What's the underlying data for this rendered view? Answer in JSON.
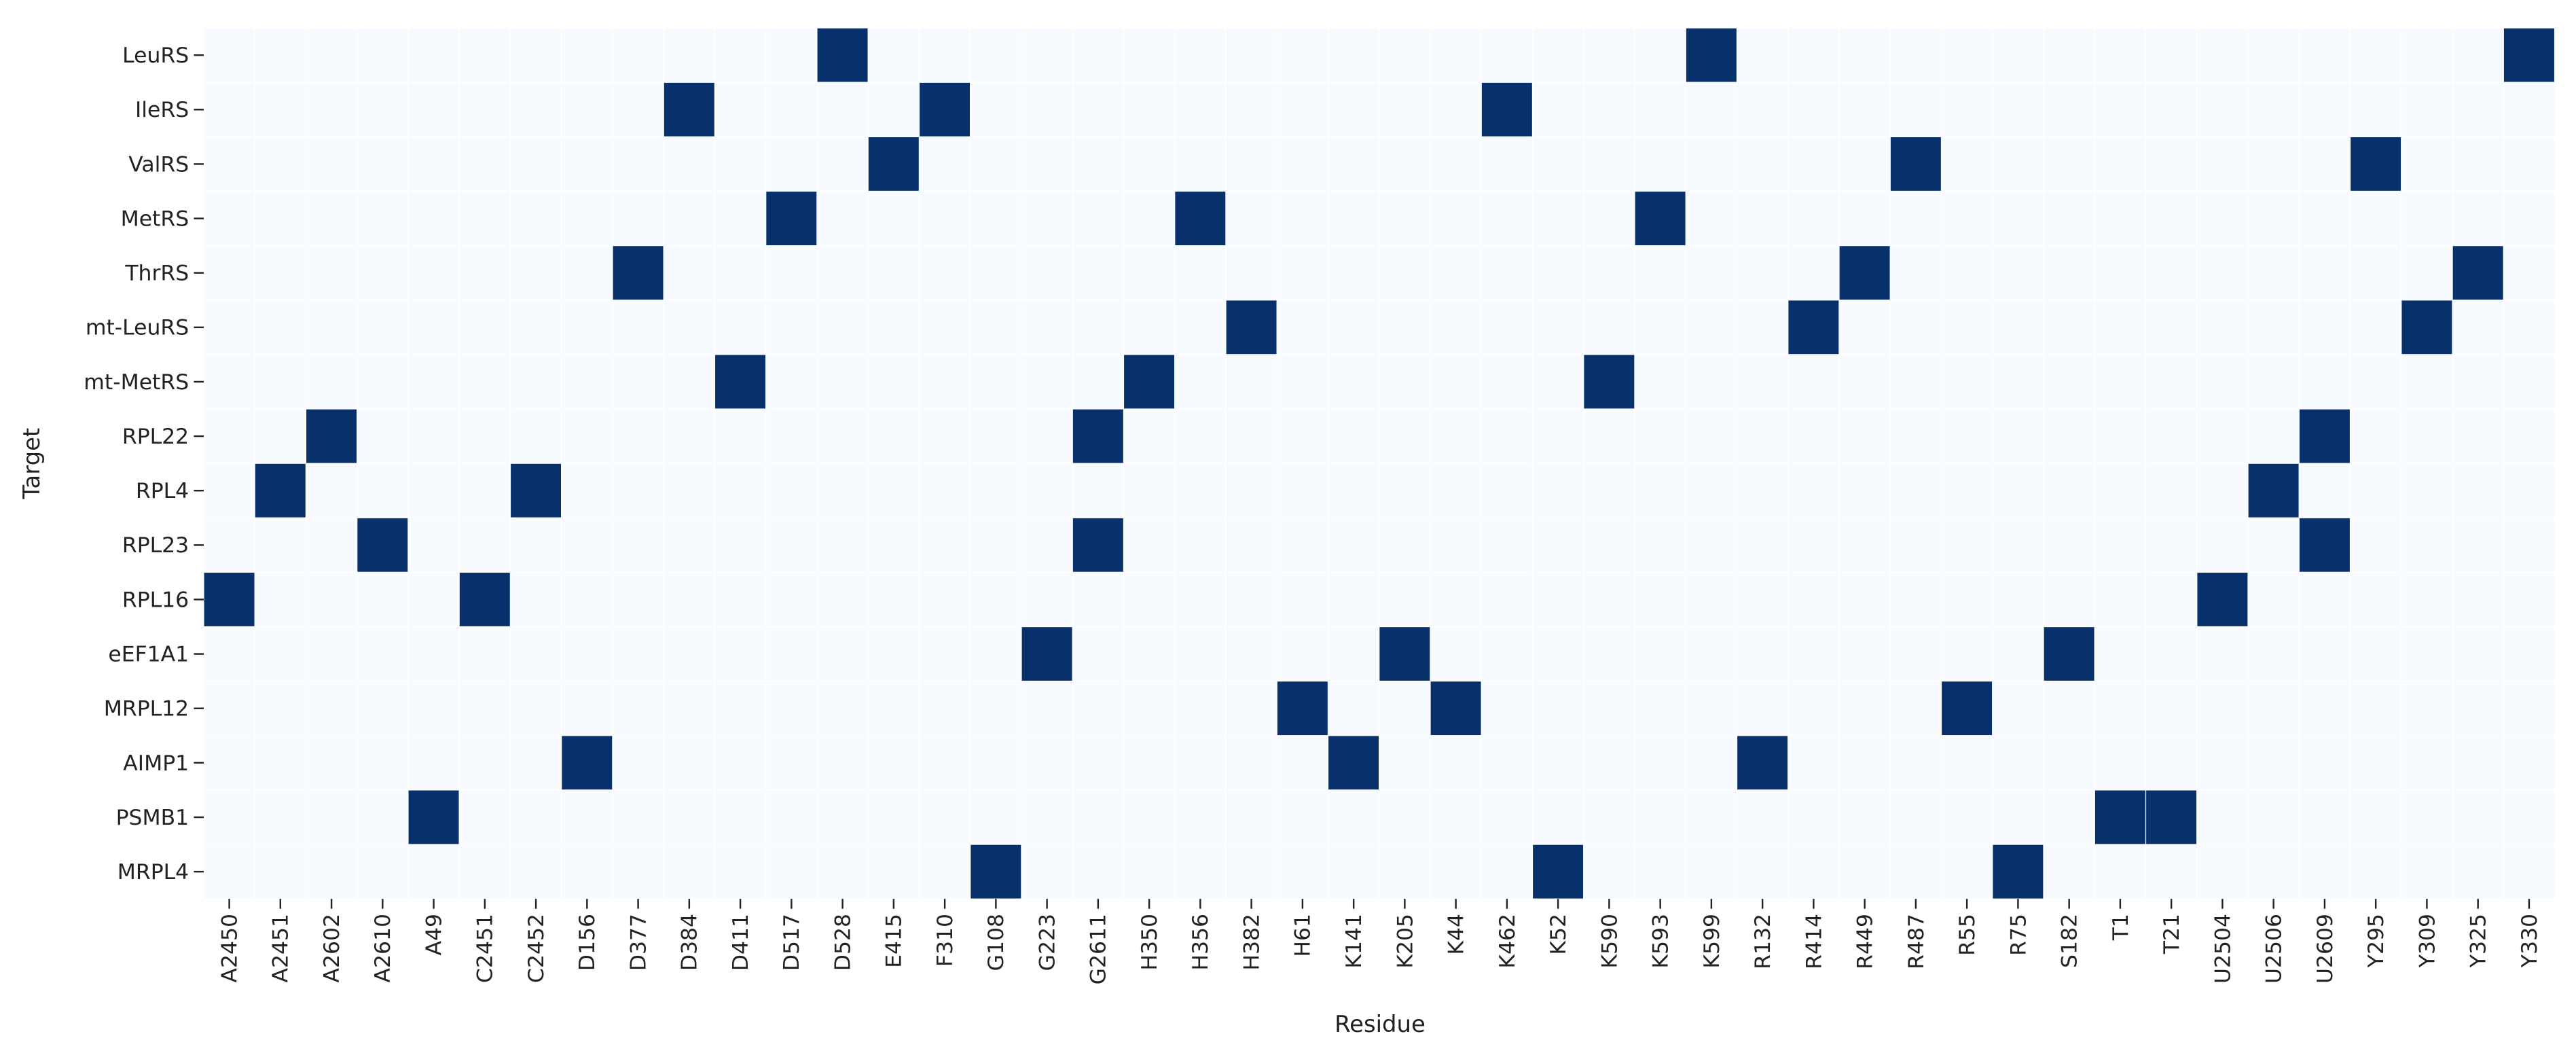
{
  "chart_data": {
    "type": "heatmap",
    "xlabel": "Residue",
    "ylabel": "Target",
    "x_categories": [
      "A2450",
      "A2451",
      "A2602",
      "A2610",
      "A49",
      "C2451",
      "C2452",
      "D156",
      "D377",
      "D384",
      "D411",
      "D517",
      "D528",
      "E415",
      "F310",
      "G108",
      "G223",
      "G2611",
      "H350",
      "H356",
      "H382",
      "H61",
      "K141",
      "K205",
      "K44",
      "K462",
      "K52",
      "K590",
      "K593",
      "K599",
      "R132",
      "R414",
      "R449",
      "R487",
      "R55",
      "R75",
      "S182",
      "T1",
      "T21",
      "U2504",
      "U2506",
      "U2609",
      "Y295",
      "Y309",
      "Y325",
      "Y330"
    ],
    "y_categories": [
      "LeuRS",
      "IleRS",
      "ValRS",
      "MetRS",
      "ThrRS",
      "mt-LeuRS",
      "mt-MetRS",
      "RPL22",
      "RPL4",
      "RPL23",
      "RPL16",
      "eEF1A1",
      "MRPL12",
      "AIMP1",
      "PSMB1",
      "MRPL4"
    ],
    "colormap": [
      "#f7fbff",
      "#08306b"
    ],
    "values": [
      [
        0,
        0,
        0,
        0,
        0,
        0,
        0,
        0,
        0,
        0,
        0,
        0,
        1,
        0,
        0,
        0,
        0,
        0,
        0,
        0,
        0,
        0,
        0,
        0,
        0,
        0,
        0,
        0,
        0,
        1,
        0,
        0,
        0,
        0,
        0,
        0,
        0,
        0,
        0,
        0,
        0,
        0,
        0,
        0,
        0,
        1
      ],
      [
        0,
        0,
        0,
        0,
        0,
        0,
        0,
        0,
        0,
        1,
        0,
        0,
        0,
        0,
        1,
        0,
        0,
        0,
        0,
        0,
        0,
        0,
        0,
        0,
        0,
        1,
        0,
        0,
        0,
        0,
        0,
        0,
        0,
        0,
        0,
        0,
        0,
        0,
        0,
        0,
        0,
        0,
        0,
        0,
        0,
        0
      ],
      [
        0,
        0,
        0,
        0,
        0,
        0,
        0,
        0,
        0,
        0,
        0,
        0,
        0,
        1,
        0,
        0,
        0,
        0,
        0,
        0,
        0,
        0,
        0,
        0,
        0,
        0,
        0,
        0,
        0,
        0,
        0,
        0,
        0,
        1,
        0,
        0,
        0,
        0,
        0,
        0,
        0,
        0,
        1,
        0,
        0,
        0
      ],
      [
        0,
        0,
        0,
        0,
        0,
        0,
        0,
        0,
        0,
        0,
        0,
        1,
        0,
        0,
        0,
        0,
        0,
        0,
        0,
        1,
        0,
        0,
        0,
        0,
        0,
        0,
        0,
        0,
        1,
        0,
        0,
        0,
        0,
        0,
        0,
        0,
        0,
        0,
        0,
        0,
        0,
        0,
        0,
        0,
        0,
        0
      ],
      [
        0,
        0,
        0,
        0,
        0,
        0,
        0,
        0,
        1,
        0,
        0,
        0,
        0,
        0,
        0,
        0,
        0,
        0,
        0,
        0,
        0,
        0,
        0,
        0,
        0,
        0,
        0,
        0,
        0,
        0,
        0,
        0,
        1,
        0,
        0,
        0,
        0,
        0,
        0,
        0,
        0,
        0,
        0,
        0,
        1,
        0
      ],
      [
        0,
        0,
        0,
        0,
        0,
        0,
        0,
        0,
        0,
        0,
        0,
        0,
        0,
        0,
        0,
        0,
        0,
        0,
        0,
        0,
        1,
        0,
        0,
        0,
        0,
        0,
        0,
        0,
        0,
        0,
        0,
        1,
        0,
        0,
        0,
        0,
        0,
        0,
        0,
        0,
        0,
        0,
        0,
        1,
        0,
        0
      ],
      [
        0,
        0,
        0,
        0,
        0,
        0,
        0,
        0,
        0,
        0,
        1,
        0,
        0,
        0,
        0,
        0,
        0,
        0,
        1,
        0,
        0,
        0,
        0,
        0,
        0,
        0,
        0,
        1,
        0,
        0,
        0,
        0,
        0,
        0,
        0,
        0,
        0,
        0,
        0,
        0,
        0,
        0,
        0,
        0,
        0,
        0
      ],
      [
        0,
        0,
        1,
        0,
        0,
        0,
        0,
        0,
        0,
        0,
        0,
        0,
        0,
        0,
        0,
        0,
        0,
        1,
        0,
        0,
        0,
        0,
        0,
        0,
        0,
        0,
        0,
        0,
        0,
        0,
        0,
        0,
        0,
        0,
        0,
        0,
        0,
        0,
        0,
        0,
        0,
        1,
        0,
        0,
        0,
        0
      ],
      [
        0,
        1,
        0,
        0,
        0,
        0,
        1,
        0,
        0,
        0,
        0,
        0,
        0,
        0,
        0,
        0,
        0,
        0,
        0,
        0,
        0,
        0,
        0,
        0,
        0,
        0,
        0,
        0,
        0,
        0,
        0,
        0,
        0,
        0,
        0,
        0,
        0,
        0,
        0,
        0,
        1,
        0,
        0,
        0,
        0,
        0
      ],
      [
        0,
        0,
        0,
        1,
        0,
        0,
        0,
        0,
        0,
        0,
        0,
        0,
        0,
        0,
        0,
        0,
        0,
        1,
        0,
        0,
        0,
        0,
        0,
        0,
        0,
        0,
        0,
        0,
        0,
        0,
        0,
        0,
        0,
        0,
        0,
        0,
        0,
        0,
        0,
        0,
        0,
        1,
        0,
        0,
        0,
        0
      ],
      [
        1,
        0,
        0,
        0,
        0,
        1,
        0,
        0,
        0,
        0,
        0,
        0,
        0,
        0,
        0,
        0,
        0,
        0,
        0,
        0,
        0,
        0,
        0,
        0,
        0,
        0,
        0,
        0,
        0,
        0,
        0,
        0,
        0,
        0,
        0,
        0,
        0,
        0,
        0,
        1,
        0,
        0,
        0,
        0,
        0,
        0
      ],
      [
        0,
        0,
        0,
        0,
        0,
        0,
        0,
        0,
        0,
        0,
        0,
        0,
        0,
        0,
        0,
        0,
        1,
        0,
        0,
        0,
        0,
        0,
        0,
        1,
        0,
        0,
        0,
        0,
        0,
        0,
        0,
        0,
        0,
        0,
        0,
        0,
        1,
        0,
        0,
        0,
        0,
        0,
        0,
        0,
        0,
        0
      ],
      [
        0,
        0,
        0,
        0,
        0,
        0,
        0,
        0,
        0,
        0,
        0,
        0,
        0,
        0,
        0,
        0,
        0,
        0,
        0,
        0,
        0,
        1,
        0,
        0,
        1,
        0,
        0,
        0,
        0,
        0,
        0,
        0,
        0,
        0,
        1,
        0,
        0,
        0,
        0,
        0,
        0,
        0,
        0,
        0,
        0,
        0
      ],
      [
        0,
        0,
        0,
        0,
        0,
        0,
        0,
        1,
        0,
        0,
        0,
        0,
        0,
        0,
        0,
        0,
        0,
        0,
        0,
        0,
        0,
        0,
        1,
        0,
        0,
        0,
        0,
        0,
        0,
        0,
        1,
        0,
        0,
        0,
        0,
        0,
        0,
        0,
        0,
        0,
        0,
        0,
        0,
        0,
        0,
        0
      ],
      [
        0,
        0,
        0,
        0,
        1,
        0,
        0,
        0,
        0,
        0,
        0,
        0,
        0,
        0,
        0,
        0,
        0,
        0,
        0,
        0,
        0,
        0,
        0,
        0,
        0,
        0,
        0,
        0,
        0,
        0,
        0,
        0,
        0,
        0,
        0,
        0,
        0,
        1,
        1,
        0,
        0,
        0,
        0,
        0,
        0,
        0
      ],
      [
        0,
        0,
        0,
        0,
        0,
        0,
        0,
        0,
        0,
        0,
        0,
        0,
        0,
        0,
        0,
        1,
        0,
        0,
        0,
        0,
        0,
        0,
        0,
        0,
        0,
        0,
        1,
        0,
        0,
        0,
        0,
        0,
        0,
        0,
        0,
        1,
        0,
        0,
        0,
        0,
        0,
        0,
        0,
        0,
        0,
        0
      ]
    ]
  }
}
